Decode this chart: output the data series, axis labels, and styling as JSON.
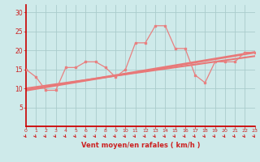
{
  "xlabel": "Vent moyen/en rafales ( km/h )",
  "x_scattered": [
    0,
    1,
    2,
    3,
    4,
    5,
    6,
    7,
    8,
    9,
    10,
    11,
    12,
    13,
    14,
    15,
    16,
    17,
    18,
    19,
    20,
    21,
    22,
    23
  ],
  "y_scattered": [
    15.0,
    13.0,
    9.5,
    9.5,
    15.5,
    15.5,
    17.0,
    17.0,
    15.5,
    13.0,
    15.0,
    22.0,
    22.0,
    26.5,
    26.5,
    20.5,
    20.5,
    13.5,
    11.5,
    17.0,
    17.0,
    17.0,
    19.5,
    19.5
  ],
  "trend_x": [
    0,
    23
  ],
  "trend_y": [
    9.5,
    19.5
  ],
  "trend2_x": [
    0,
    23
  ],
  "trend2_y": [
    10.0,
    18.5
  ],
  "ylim": [
    0,
    32
  ],
  "xlim": [
    0,
    23
  ],
  "yticks": [
    5,
    10,
    15,
    20,
    25,
    30
  ],
  "xticks": [
    0,
    1,
    2,
    3,
    4,
    5,
    6,
    7,
    8,
    9,
    10,
    11,
    12,
    13,
    14,
    15,
    16,
    17,
    18,
    19,
    20,
    21,
    22,
    23
  ],
  "bg_color": "#ceeaea",
  "grid_color": "#aacccc",
  "line_color": "#e88080",
  "trend_color": "#e87878",
  "tick_label_color": "#cc2222",
  "xlabel_color": "#cc2222",
  "red_line_color": "#cc0000",
  "arrow_color": "#cc2222",
  "ytick_fontsize": 5.5,
  "xtick_fontsize": 4.5,
  "xlabel_fontsize": 6.0
}
